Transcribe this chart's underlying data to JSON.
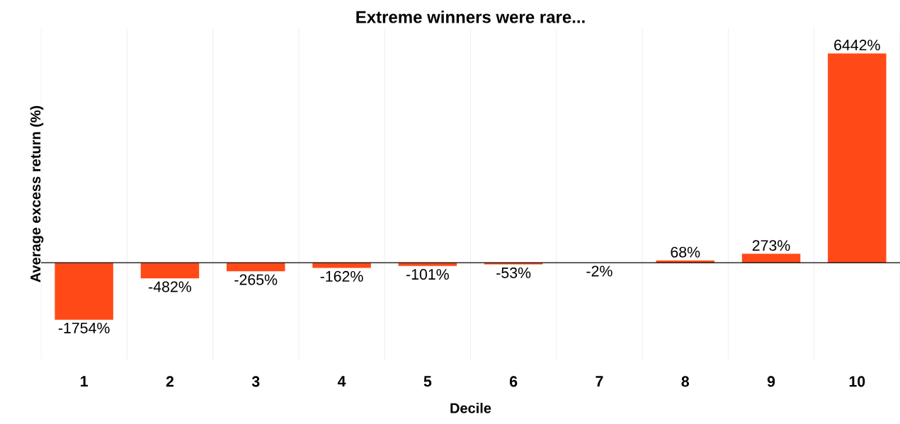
{
  "chart_data": {
    "type": "bar",
    "title": "Extreme winners were rare...",
    "xlabel": "Decile",
    "ylabel": "Average excess return (%)",
    "categories": [
      "1",
      "2",
      "3",
      "4",
      "5",
      "6",
      "7",
      "8",
      "9",
      "10"
    ],
    "values": [
      -1754,
      -482,
      -265,
      -162,
      -101,
      -53,
      -2,
      68,
      273,
      6442
    ],
    "value_labels": [
      "-1754%",
      "-482%",
      "-265%",
      "-162%",
      "-101%",
      "-53%",
      "-2%",
      "68%",
      "273%",
      "6442%"
    ],
    "color": "#ff4a17",
    "grid": "x"
  }
}
